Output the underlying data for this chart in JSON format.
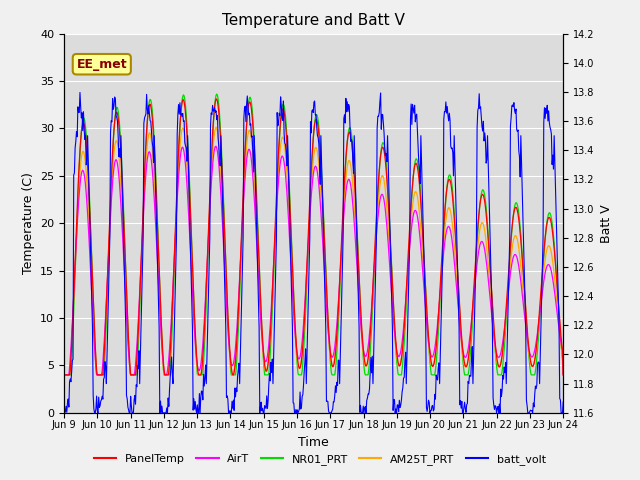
{
  "title": "Temperature and Batt V",
  "xlabel": "Time",
  "ylabel_left": "Temperature (C)",
  "ylabel_right": "Batt V",
  "annotation": "EE_met",
  "ylim_left": [
    0,
    40
  ],
  "ylim_right": [
    11.6,
    14.2
  ],
  "xtick_labels": [
    "Jun 9",
    "Jun 10",
    "Jun 11",
    "Jun 12",
    "Jun 13",
    "Jun 14",
    "Jun 15",
    "Jun 16",
    "Jun 17",
    "Jun 18",
    "Jun 19",
    "Jun 20",
    "Jun 21",
    "Jun 22",
    "Jun 23",
    "Jun 24"
  ],
  "series_colors": {
    "PanelTemp": "#ff0000",
    "AirT": "#ff00ff",
    "NR01_PRT": "#00dd00",
    "AM25T_PRT": "#ffaa00",
    "batt_volt": "#0000ff"
  },
  "legend_labels": [
    "PanelTemp",
    "AirT",
    "NR01_PRT",
    "AM25T_PRT",
    "batt_volt"
  ],
  "background_color": "#dcdcdc",
  "fig_facecolor": "#f0f0f0",
  "title_fontsize": 11,
  "label_fontsize": 9,
  "tick_fontsize": 8
}
